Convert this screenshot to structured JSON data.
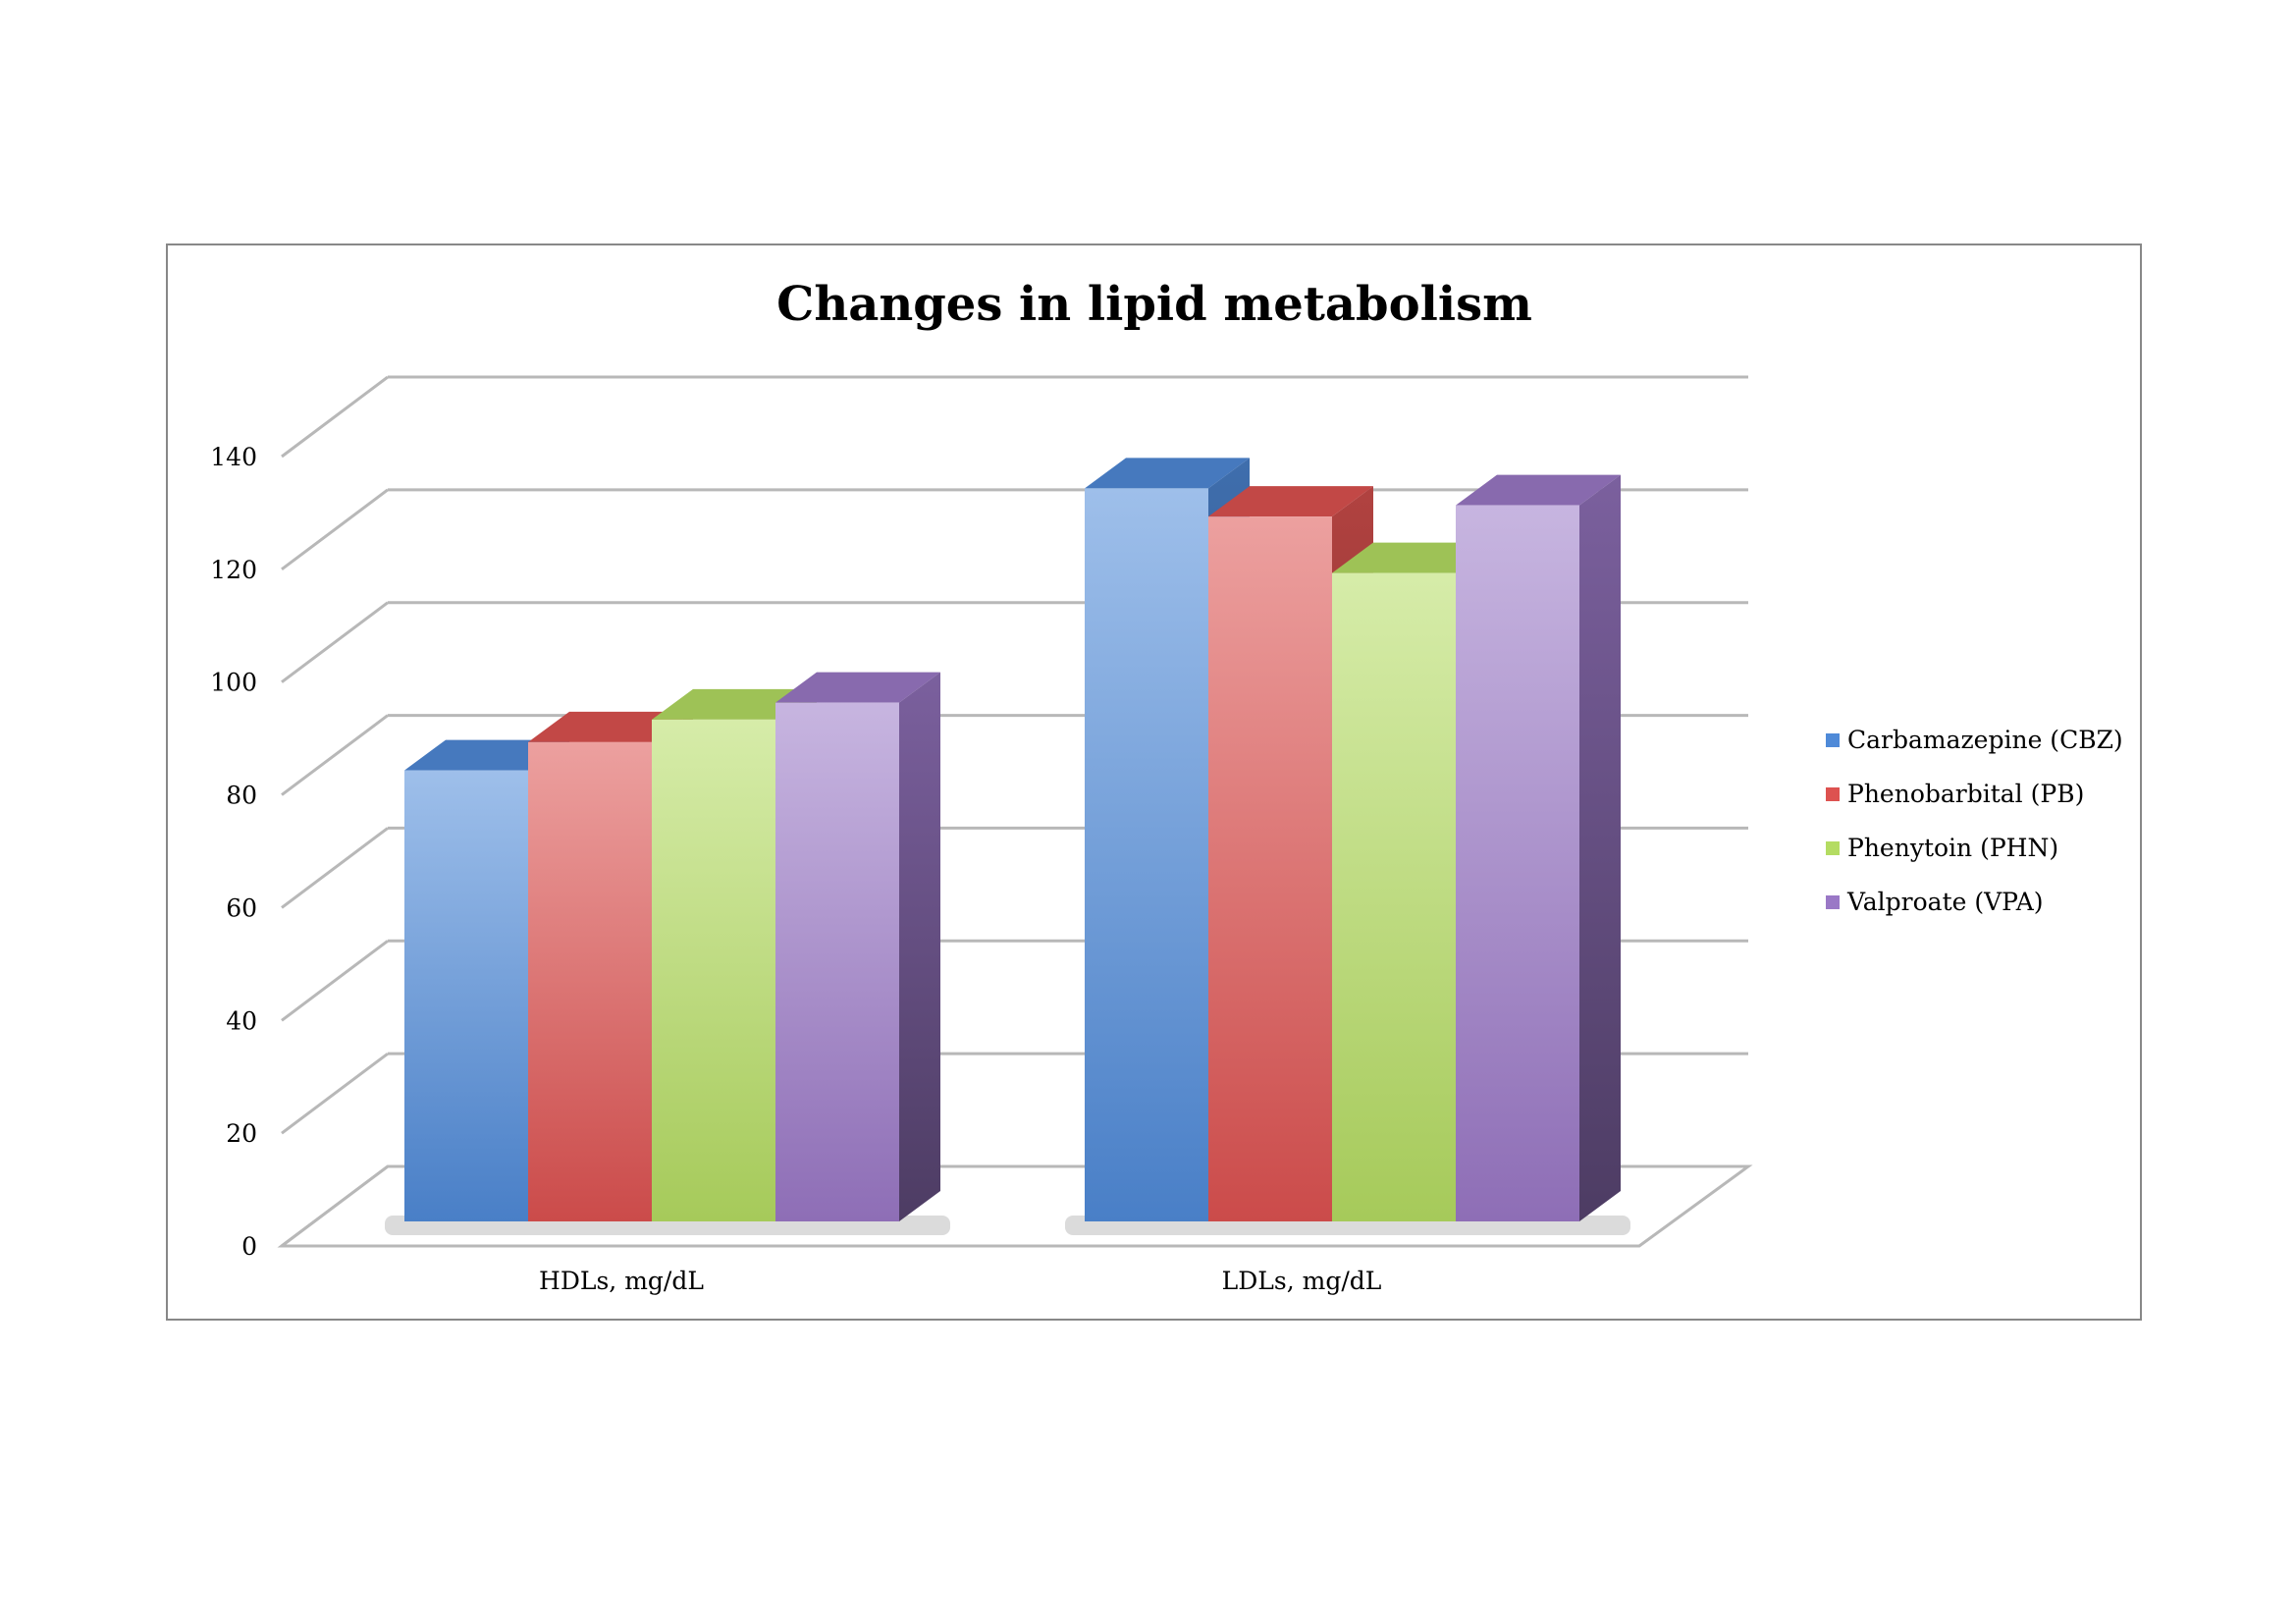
{
  "chart_data": {
    "type": "bar",
    "style": "3d-clustered-column",
    "title": "Changes in lipid metabolism",
    "categories": [
      "HDLs, mg/dL",
      "LDLs, mg/dL"
    ],
    "series": [
      {
        "name": "Carbamazepine (CBZ)",
        "values": [
          80,
          130
        ],
        "color": "#4f8ad8"
      },
      {
        "name": "Phenobarbital (PB)",
        "values": [
          85,
          125
        ],
        "color": "#dd5250"
      },
      {
        "name": "Phenytoin (PHN)",
        "values": [
          89,
          115
        ],
        "color": "#b4dc62"
      },
      {
        "name": "Valproate (VPA)",
        "values": [
          92,
          127
        ],
        "color": "#9a78c6"
      }
    ],
    "ylim": [
      0,
      140
    ],
    "yticks": [
      "0",
      "20",
      "40",
      "60",
      "80",
      "100",
      "120",
      "140"
    ],
    "xlabel": "",
    "ylabel": "",
    "grid": true,
    "legend": "right"
  }
}
